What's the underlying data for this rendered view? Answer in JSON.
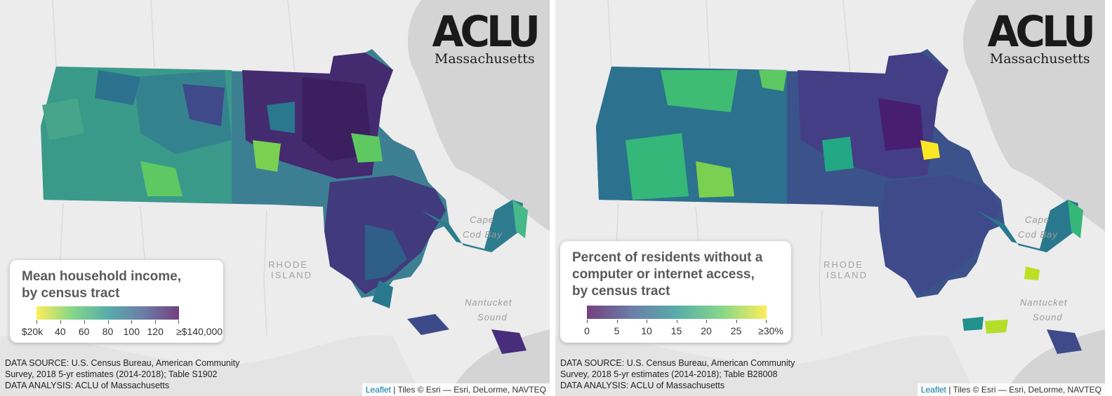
{
  "panels": [
    {
      "legend": {
        "title_line1": "Mean household income,",
        "title_line2": "by census tract",
        "ticks": [
          "$20k",
          "40",
          "60",
          "80",
          "100",
          "120",
          "≥$140,000"
        ],
        "gradient": [
          "#fde725",
          "#5ec962",
          "#21918c",
          "#3b528b",
          "#440154"
        ]
      },
      "source": {
        "line1": "DATA SOURCE: U.S. Census Bureau, American Community",
        "line2": "Survey, 2018 5-yr estimates (2014-2018); Table S1902",
        "line3": "DATA ANALYSIS: ACLU of Massachusetts"
      }
    },
    {
      "legend": {
        "title_line1": "Percent of residents without a",
        "title_line2": "computer or internet access,",
        "title_line3": "by census tract",
        "ticks": [
          "0",
          "5",
          "10",
          "15",
          "20",
          "25",
          "≥30%"
        ],
        "gradient": [
          "#440154",
          "#3b528b",
          "#21918c",
          "#5ec962",
          "#fde725"
        ]
      },
      "source": {
        "line1": "DATA SOURCE: U.S. Census Bureau, American Community",
        "line2": "Survey, 2018 5-yr estimates (2014-2018); Table B28008",
        "line3": "DATA ANALYSIS: ACLU of Massachusetts"
      }
    }
  ],
  "logo": {
    "mark": "ACLU",
    "sub": "Massachusetts"
  },
  "map_labels": {
    "rhode": "RHODE",
    "island": "ISLAND",
    "cape": "Cape",
    "cod_bay": "Cod Bay",
    "nantucket": "Nantucket",
    "sound": "Sound"
  },
  "attribution": {
    "link": "Leaflet",
    "text": " | Tiles © Esri — Esri, DeLorme, NAVTEQ"
  },
  "colors": {
    "ocean": "#d6d6d6",
    "land": "#ececec"
  }
}
